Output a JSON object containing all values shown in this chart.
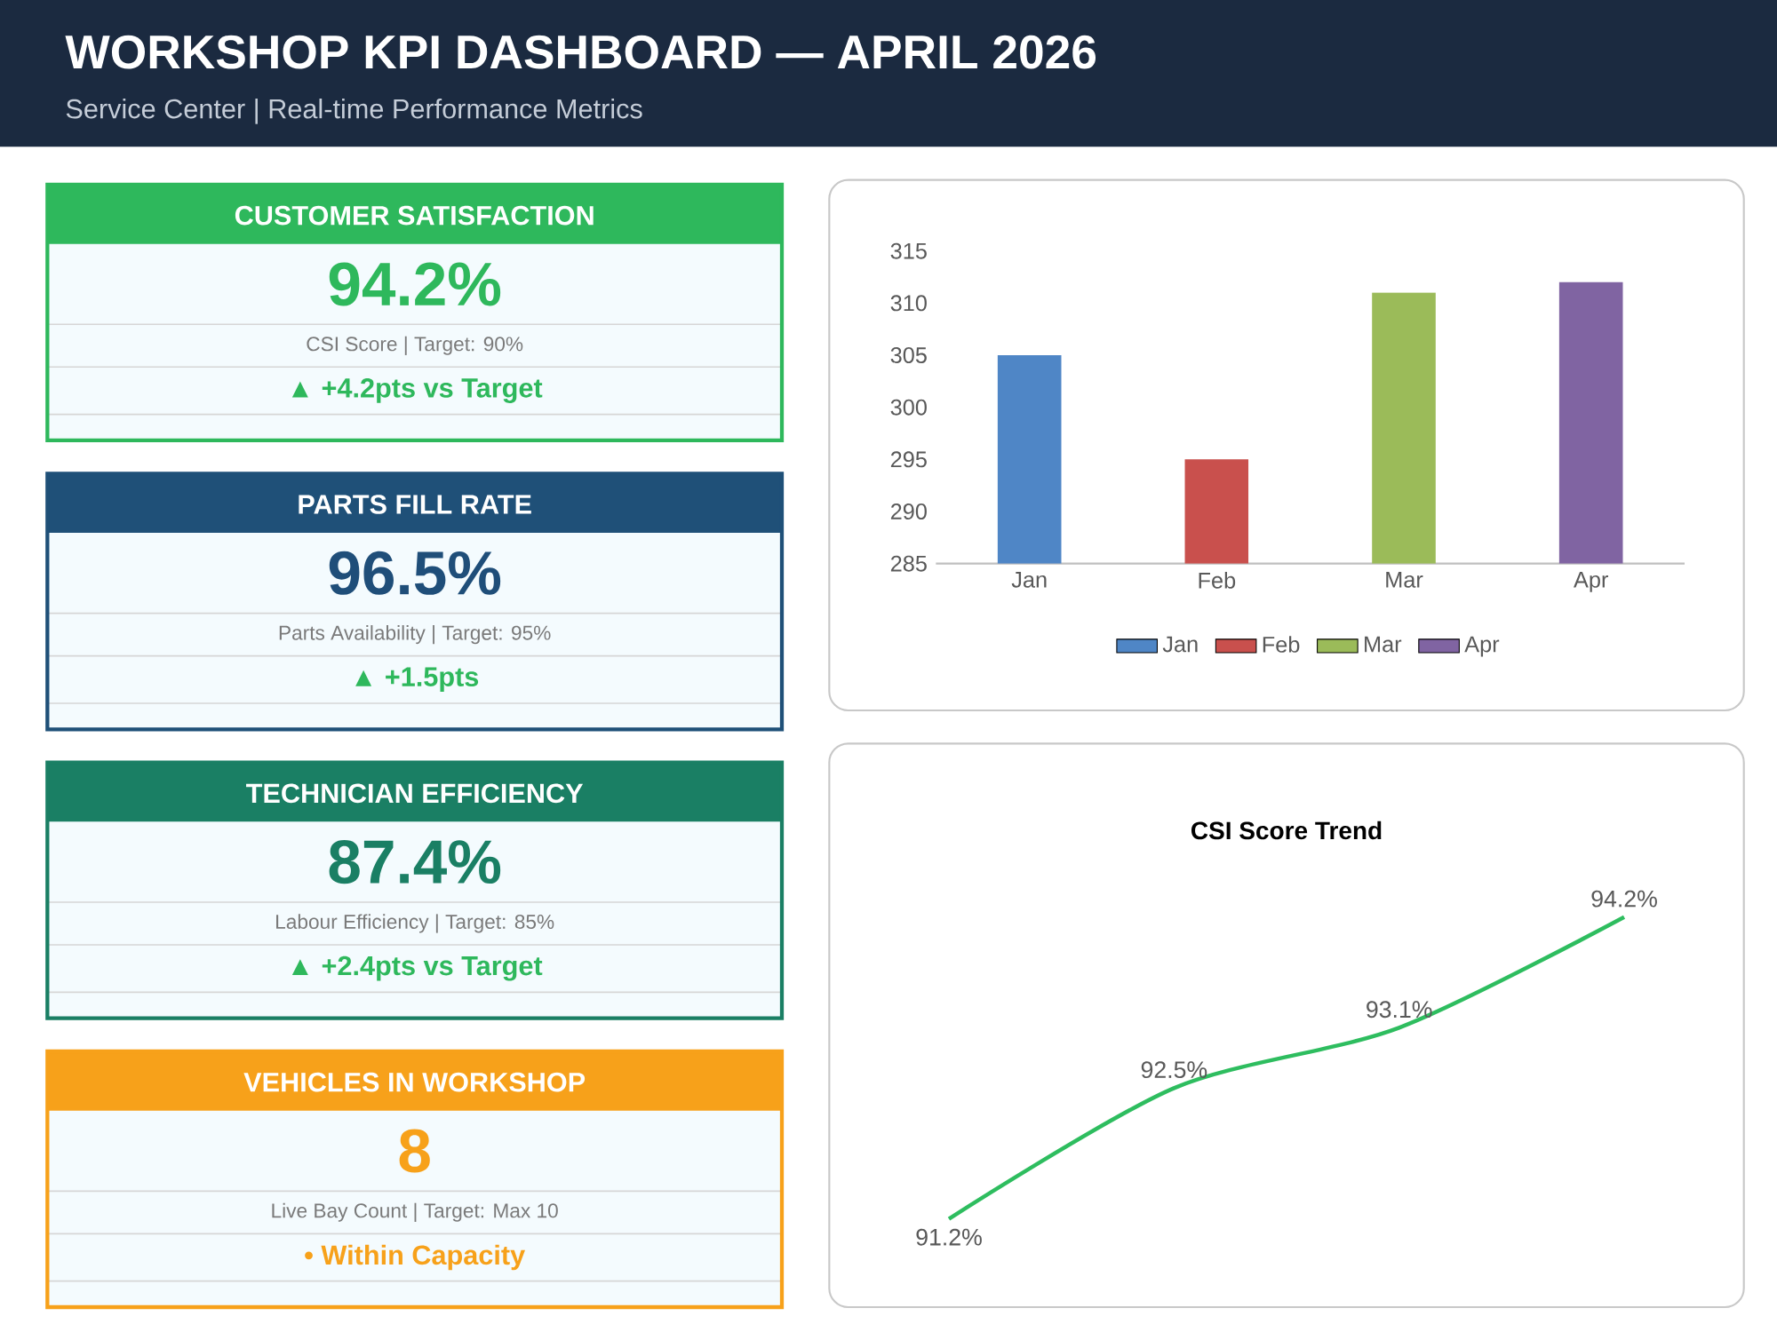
{
  "chart_data": [
    {
      "type": "other",
      "title": "WORKSHOP KPI DASHBOARD — APRIL 2026",
      "subtitle": "Service Center | Real-time Performance Metrics",
      "color": "#1b2a40"
    },
    {
      "type": "other",
      "title": "CUSTOMER SATISFACTION",
      "color": "#2eb85c",
      "annotations": [
        "94.2%",
        "CSI Score | Target: 90%",
        "▲ +4.2pts vs Target"
      ],
      "colors": [
        "#2eb85c",
        "#7a7a7a",
        "#2eb85c"
      ]
    },
    {
      "type": "other",
      "title": "PARTS FILL RATE",
      "color": "#1f5078",
      "annotations": [
        "96.5%",
        "Parts Availability | Target: 95%",
        "▲ +1.5pts"
      ],
      "colors": [
        "#1f4e79",
        "#7a7a7a",
        "#2eb85c"
      ]
    },
    {
      "type": "other",
      "title": "TECHNICIAN EFFICIENCY",
      "color": "#1a7f64",
      "annotations": [
        "87.4%",
        "Labour Efficiency | Target: 85%",
        "▲ +2.4pts vs Target"
      ],
      "colors": [
        "#1a7f64",
        "#7a7a7a",
        "#2eb85c"
      ]
    },
    {
      "type": "other",
      "title": "VEHICLES IN WORKSHOP",
      "color": "#f7a11a",
      "annotations": [
        "8",
        "Live Bay Count | Target: Max 10",
        "• Within Capacity"
      ],
      "colors": [
        "#f7a11a",
        "#7a7a7a",
        "#f7a11a"
      ]
    },
    {
      "type": "bar",
      "categories": [
        "Jan",
        "Feb",
        "Mar",
        "Apr"
      ],
      "series": [
        {
          "name": "Jan",
          "color": "#4f86c6",
          "values": [
            305,
            null,
            null,
            null
          ]
        },
        {
          "name": "Feb",
          "color": "#c9504d",
          "values": [
            null,
            295,
            null,
            null
          ]
        },
        {
          "name": "Mar",
          "color": "#9bbb59",
          "values": [
            null,
            null,
            311,
            null
          ]
        },
        {
          "name": "Apr",
          "color": "#8064a2",
          "values": [
            null,
            null,
            null,
            312
          ]
        }
      ],
      "ylim": [
        285,
        315
      ],
      "yticks": [
        285,
        290,
        295,
        300,
        305,
        310,
        315
      ],
      "legend": "bottom"
    },
    {
      "type": "line",
      "title": "CSI Score Trend",
      "categories": [
        null,
        null,
        null,
        null
      ],
      "values": [
        91.2,
        92.5,
        93.1,
        94.2
      ],
      "value_labels": [
        "91.2%",
        "92.5%",
        "93.1%",
        "94.2%"
      ],
      "color": "#2ebd5f"
    }
  ]
}
